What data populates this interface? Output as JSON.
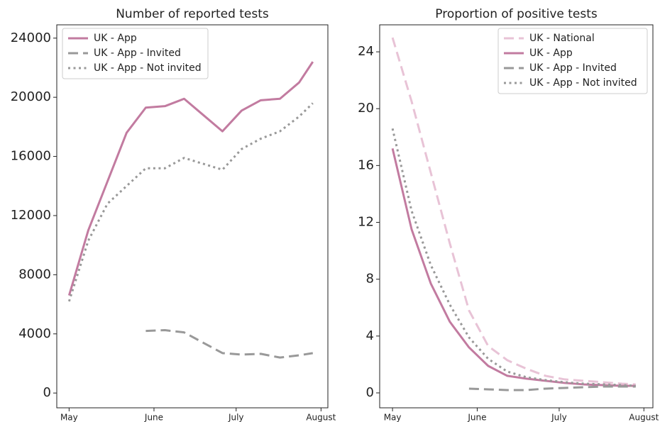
{
  "chart_data": [
    {
      "type": "line",
      "title": "Number of reported tests",
      "x": [
        0,
        7,
        14,
        21,
        28,
        35,
        42,
        49,
        56,
        63,
        70,
        77,
        84,
        89
      ],
      "xlim": [
        -4.5,
        94.5
      ],
      "xticks": [
        {
          "value": 0,
          "label": "May"
        },
        {
          "value": 31,
          "label": "June"
        },
        {
          "value": 61,
          "label": "July"
        },
        {
          "value": 92,
          "label": "August"
        }
      ],
      "ylim": [
        -1000,
        24900
      ],
      "yticks": [
        0,
        4000,
        8000,
        12000,
        16000,
        20000,
        24000
      ],
      "legend": "upper left",
      "series": [
        {
          "name": "UK - App",
          "color": "#c27ba0",
          "style": "solid",
          "values": [
            6600,
            11000,
            14300,
            17600,
            19300,
            19400,
            19900,
            18800,
            17700,
            19100,
            19800,
            19900,
            21000,
            22400
          ]
        },
        {
          "name": "UK - App - Invited",
          "color": "#999999",
          "style": "dashed",
          "values": [
            null,
            null,
            null,
            null,
            4200,
            4250,
            4100,
            3400,
            2700,
            2600,
            2650,
            2400,
            2550,
            2700
          ]
        },
        {
          "name": "UK - App - Not invited",
          "color": "#999999",
          "style": "dotted",
          "values": [
            6200,
            10300,
            12800,
            14000,
            15200,
            15200,
            15900,
            15500,
            15100,
            16500,
            17200,
            17700,
            18700,
            19600
          ]
        }
      ]
    },
    {
      "type": "line",
      "title": "Proportion of positive tests",
      "x": [
        0,
        7,
        14,
        21,
        28,
        35,
        42,
        49,
        56,
        63,
        70,
        77,
        84,
        89
      ],
      "xlim": [
        -4.7,
        95.3
      ],
      "xticks": [
        {
          "value": 0,
          "label": "May"
        },
        {
          "value": 31,
          "label": "June"
        },
        {
          "value": 61,
          "label": "July"
        },
        {
          "value": 92,
          "label": "August"
        }
      ],
      "ylim": [
        -1.05,
        25.9
      ],
      "yticks": [
        0,
        4,
        8,
        12,
        16,
        20,
        24
      ],
      "legend": "upper right",
      "series": [
        {
          "name": "UK - National",
          "color": "#e8c3d6",
          "style": "dashed",
          "values": [
            25,
            20.5,
            15.5,
            10.5,
            5.8,
            3.3,
            2.3,
            1.7,
            1.2,
            0.95,
            0.85,
            0.75,
            0.65,
            0.6
          ]
        },
        {
          "name": "UK - App",
          "color": "#c27ba0",
          "style": "solid",
          "values": [
            17.2,
            11.5,
            7.7,
            5.0,
            3.2,
            1.9,
            1.2,
            1.0,
            0.85,
            0.7,
            0.6,
            0.55,
            0.5,
            0.5
          ]
        },
        {
          "name": "UK - App - Invited",
          "color": "#999999",
          "style": "dashed",
          "values": [
            null,
            null,
            null,
            null,
            0.3,
            0.25,
            0.2,
            0.2,
            0.3,
            0.35,
            0.4,
            0.45,
            0.45,
            0.45
          ]
        },
        {
          "name": "UK - App - Not invited",
          "color": "#999999",
          "style": "dotted",
          "values": [
            18.6,
            12.8,
            9.0,
            6.2,
            3.9,
            2.4,
            1.5,
            1.1,
            0.9,
            0.75,
            0.65,
            0.6,
            0.55,
            0.5
          ]
        }
      ]
    }
  ]
}
